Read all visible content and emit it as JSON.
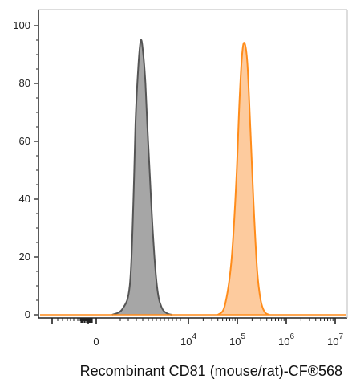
{
  "chart_data": {
    "type": "area",
    "xlabel": "Recombinant CD81 (mouse/rat)-CF®568",
    "ylabel": "",
    "xscale": "biexponential (linear near 0, log above 10^3)",
    "ylim": [
      0,
      100
    ],
    "y_ticks": [
      "0",
      "20",
      "40",
      "60",
      "80",
      "100"
    ],
    "x_ticks": [
      {
        "base": "0",
        "exp": ""
      },
      {
        "base": "10",
        "exp": "4"
      },
      {
        "base": "10",
        "exp": "5"
      },
      {
        "base": "10",
        "exp": "6"
      },
      {
        "base": "10",
        "exp": "7"
      }
    ],
    "series": [
      {
        "color": "#a6a6a6",
        "stroke": "#555555",
        "x": [
          500,
          750,
          1000,
          1150,
          1250,
          1400,
          1550,
          1700,
          1850,
          2000,
          2200,
          2450,
          2750,
          3100,
          3600,
          4300,
          5200
        ],
        "y": [
          0,
          2,
          10,
          38,
          66,
          86,
          95,
          90,
          80,
          65,
          48,
          30,
          15,
          6,
          2,
          0.5,
          0
        ]
      },
      {
        "color": "#fdcb9e",
        "stroke": "#ff8c1a",
        "x": [
          40000,
          55000,
          75000,
          95000,
          110000,
          125000,
          140000,
          160000,
          185000,
          215000,
          255000,
          300000,
          360000,
          450000
        ],
        "y": [
          0,
          3,
          18,
          46,
          73,
          90,
          94,
          87,
          64,
          38,
          15,
          5,
          1,
          0
        ]
      }
    ]
  }
}
